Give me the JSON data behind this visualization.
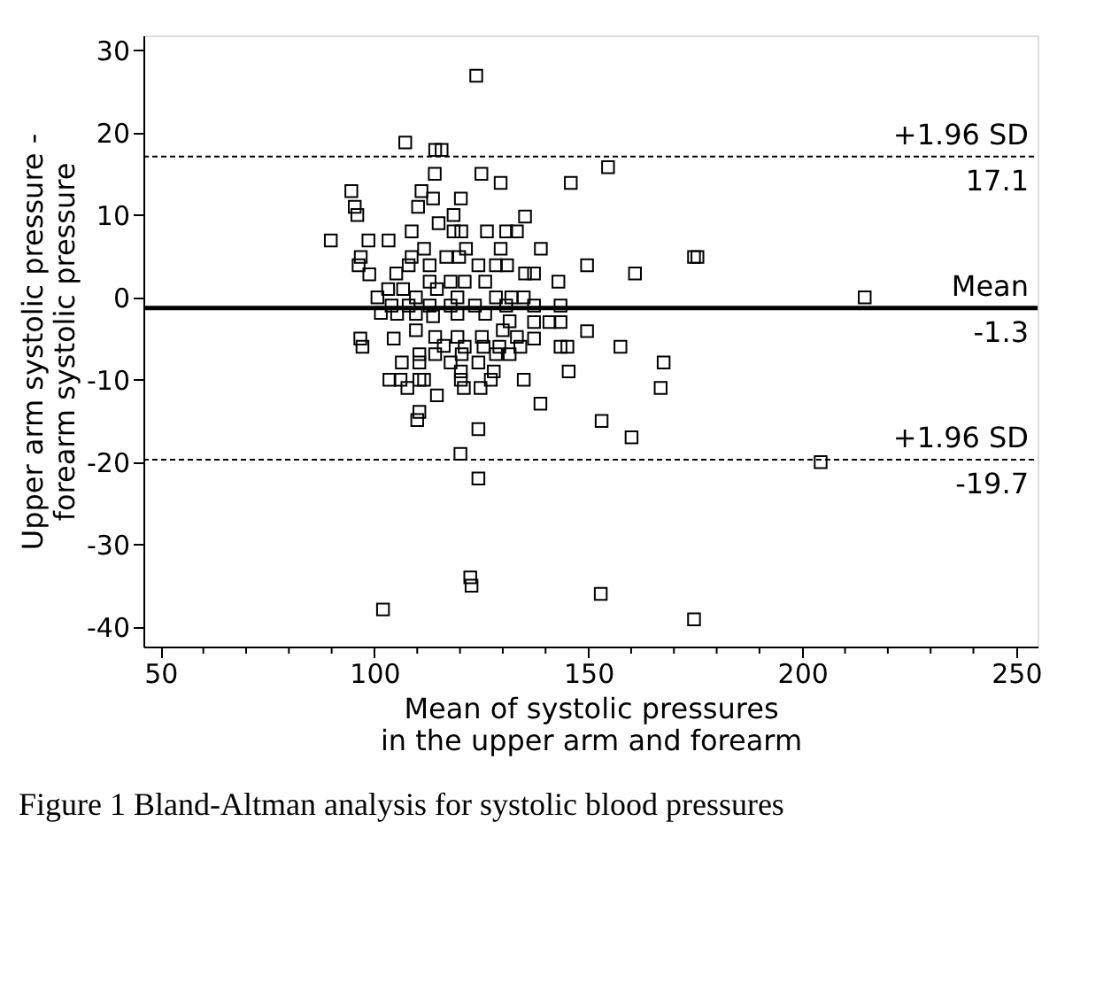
{
  "chart_data": {
    "type": "scatter",
    "title": "Figure 1  Bland-Altman analysis for systolic blood pressures",
    "xlabel": "Mean of systolic pressures\nin the upper arm and forearm",
    "ylabel": "Upper arm systolic pressure -\nforearm systolic pressure",
    "xlim": [
      46,
      255
    ],
    "ylim": [
      -42.4,
      31.8
    ],
    "xticks": [
      50,
      {
        "value": 60,
        "label": null
      },
      {
        "value": 70,
        "label": null
      },
      {
        "value": 80,
        "label": null
      },
      {
        "value": 90,
        "label": null
      },
      100,
      {
        "value": 110,
        "label": null
      },
      {
        "value": 120,
        "label": null
      },
      {
        "value": 130,
        "label": null
      },
      {
        "value": 140,
        "label": null
      },
      150,
      {
        "value": 160,
        "label": null
      },
      {
        "value": 170,
        "label": null
      },
      {
        "value": 180,
        "label": null
      },
      {
        "value": 190,
        "label": null
      },
      200,
      {
        "value": 210,
        "label": null
      },
      {
        "value": 220,
        "label": null
      },
      {
        "value": 230,
        "label": null
      },
      {
        "value": 240,
        "label": null
      },
      250
    ],
    "yticks": [
      -40,
      -30,
      -20,
      -10,
      0,
      10,
      20,
      30
    ],
    "grid": false,
    "marker": "square",
    "series": [
      {
        "color": "#000000",
        "x": [
          123.8,
          107.2,
          114.2,
          115.7,
          154.6,
          114.1,
          125,
          129.5,
          145.9,
          94.6,
          111,
          113.7,
          120.2,
          95.4,
          96,
          110.2,
          135.2,
          89.8,
          98.6,
          103.3,
          108.7,
          115,
          118.5,
          118.5,
          120.3,
          126.3,
          130.8,
          133.3,
          138.9,
          129.5,
          111.6,
          121.4,
          96.8,
          96.3,
          98.8,
          149.7,
          160.9,
          174.7,
          175.5,
          214.6,
          143,
          135.2,
          137.3,
          131,
          128.4,
          124.3,
          116.8,
          119.8,
          108.7,
          105.1,
          108,
          112.9,
          117.8,
          121.1,
          125.9,
          112.9,
          106.7,
          103.2,
          100.7,
          109.7,
          114.6,
          119.4,
          134.9,
          132,
          128.4,
          143.5,
          137.3,
          130.8,
          123.5,
          117.8,
          112.9,
          108,
          104,
          101.5,
          105.3,
          109.7,
          113.7,
          119.4,
          125.9,
          131.6,
          137.3,
          140.9,
          143.5,
          149.7,
          96.7,
          97.2,
          104.5,
          109.7,
          114.2,
          119.4,
          125.1,
          130,
          133.3,
          137.3,
          116.2,
          121.1,
          125.5,
          129.2,
          134.1,
          143.5,
          145.1,
          157.5,
          114.2,
          110.5,
          120.4,
          128.4,
          131.6,
          106.4,
          110.5,
          117.8,
          124.3,
          167.6,
          145.4,
          127.9,
          120.2,
          103.5,
          106.1,
          110.5,
          111.6,
          120.2,
          127.2,
          134.9,
          107.7,
          120.9,
          124.8,
          166.9,
          114.6,
          110.5,
          110,
          138.8,
          124.3,
          153.1,
          160.1,
          120.1,
          204.3,
          124.3,
          122.4,
          122.7,
          102,
          152.9,
          174.7
        ],
        "values": [
          26.9,
          18.8,
          17.9,
          17.9,
          15.8,
          15,
          15,
          13.9,
          13.9,
          12.9,
          12.9,
          12,
          12,
          11,
          10,
          11,
          9.8,
          6.9,
          6.9,
          6.9,
          8,
          9,
          10,
          8,
          8,
          8,
          8,
          8,
          5.9,
          5.9,
          5.9,
          5.9,
          4.9,
          3.9,
          2.8,
          3.9,
          2.9,
          4.9,
          4.9,
          0,
          1.9,
          2.9,
          2.9,
          3.9,
          3.9,
          3.9,
          4.9,
          4.9,
          4.9,
          2.9,
          3.9,
          3.9,
          1.9,
          1.9,
          1.9,
          1.9,
          1,
          1,
          0,
          0,
          1,
          0,
          0,
          0,
          0,
          -1,
          -1,
          -1,
          -1,
          -1,
          -1,
          -1,
          -1,
          -1.9,
          -2,
          -2,
          -2.3,
          -2,
          -2,
          -2.9,
          -3,
          -3,
          -3,
          -4.1,
          -5,
          -6,
          -5,
          -4,
          -4.8,
          -4.8,
          -4.8,
          -4,
          -4.8,
          -5,
          -5.9,
          -6,
          -6,
          -6,
          -6,
          -6,
          -6,
          -6,
          -6.9,
          -6.9,
          -6.9,
          -6.9,
          -6.9,
          -7.9,
          -7.9,
          -7.9,
          -7.9,
          -7.9,
          -9,
          -9,
          -9,
          -10,
          -10,
          -10,
          -10,
          -10,
          -10,
          -10,
          -11,
          -11,
          -11,
          -11,
          -11.9,
          -13.9,
          -14.9,
          -12.9,
          -16,
          -15,
          -17,
          -19,
          -20,
          -22,
          -34,
          -35,
          -37.9,
          -36,
          -39.1
        ]
      }
    ],
    "ref_lines": [
      {
        "axis": "y",
        "value": 17.1,
        "label": "+1.96 SD",
        "line_style": "dashed",
        "color": "#000000"
      },
      {
        "axis": "y",
        "value": -1.3,
        "label": "Mean",
        "line_style": "solid",
        "color": "#000000"
      },
      {
        "axis": "y",
        "value": -19.7,
        "label": "+1.96 SD",
        "line_style": "dashed",
        "color": "#000000"
      }
    ],
    "annotations": [
      "17.1",
      "-1.3",
      "-19.7"
    ]
  }
}
